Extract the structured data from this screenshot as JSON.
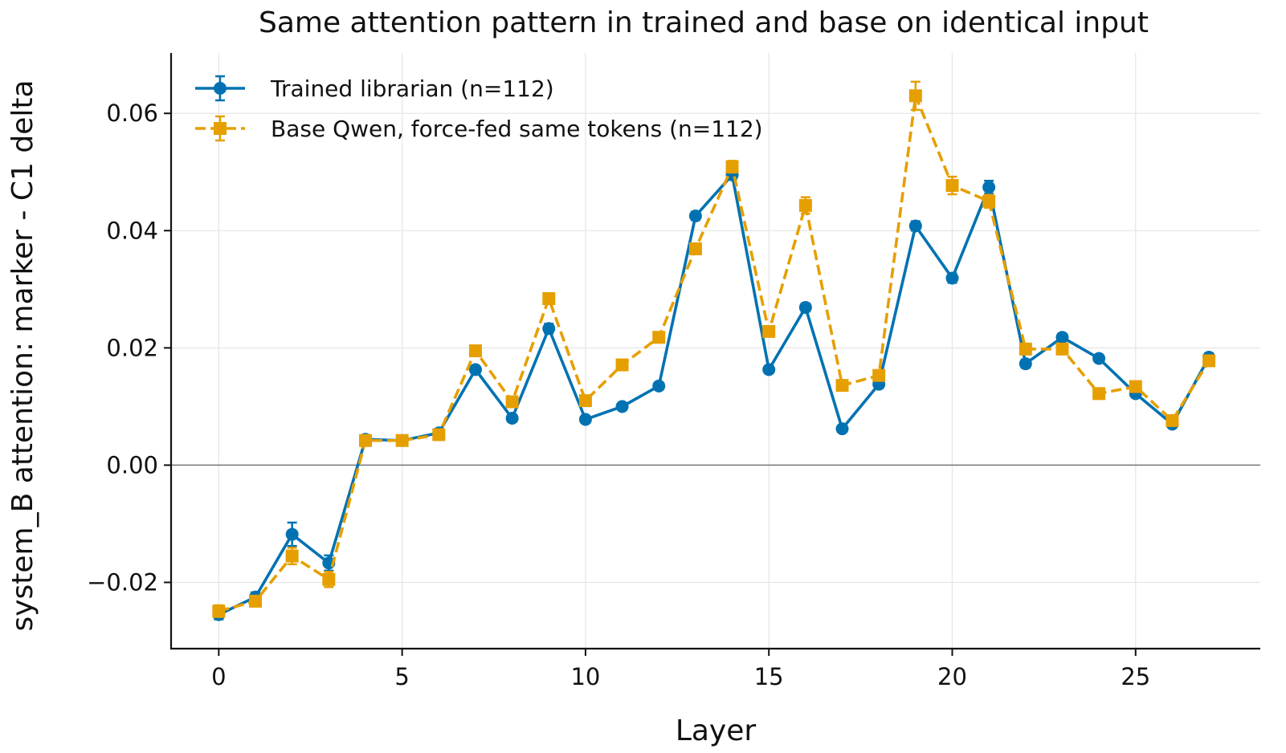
{
  "chart_data": {
    "type": "line",
    "title": "Same attention pattern in trained and base on identical input",
    "xlabel": "Layer",
    "ylabel": "system_B attention: marker - C1 delta",
    "xlim": [
      -1.3,
      28.4
    ],
    "ylim": [
      -0.0313,
      0.0703
    ],
    "xticks": [
      0,
      5,
      10,
      15,
      20,
      25
    ],
    "xtick_labels": [
      "0",
      "5",
      "10",
      "15",
      "20",
      "25"
    ],
    "yticks": [
      -0.02,
      0.0,
      0.02,
      0.04,
      0.06
    ],
    "ytick_labels": [
      "−0.02",
      "0.00",
      "0.02",
      "0.04",
      "0.06"
    ],
    "grid": true,
    "zero_line": true,
    "legend_position": "upper-left",
    "x": [
      0,
      1,
      2,
      3,
      4,
      5,
      6,
      7,
      8,
      9,
      10,
      11,
      12,
      13,
      14,
      15,
      16,
      17,
      18,
      19,
      20,
      21,
      22,
      23,
      24,
      25,
      26,
      27
    ],
    "series": [
      {
        "name": "Trained librarian (n=112)",
        "color": "#0072b2",
        "marker": "circle",
        "linestyle": "solid",
        "values": [
          -0.0255,
          -0.0225,
          -0.0118,
          -0.0167,
          0.0044,
          0.0042,
          0.0055,
          0.0163,
          0.008,
          0.0233,
          0.0078,
          0.01,
          0.0135,
          0.0425,
          0.0495,
          0.0163,
          0.0269,
          0.0062,
          0.0138,
          0.0408,
          0.0319,
          0.0474,
          0.0173,
          0.0218,
          0.0182,
          0.0122,
          0.007,
          0.0184
        ],
        "errors": [
          0.0008,
          0.0008,
          0.002,
          0.0013,
          0.0005,
          0.0004,
          0.0004,
          0.0006,
          0.0006,
          0.0008,
          0.0005,
          0.0006,
          0.0005,
          0.0007,
          0.0008,
          0.0006,
          0.0007,
          0.0005,
          0.0006,
          0.0008,
          0.0008,
          0.0011,
          0.0007,
          0.0006,
          0.0006,
          0.0005,
          0.0004,
          0.0007
        ]
      },
      {
        "name": "Base Qwen, force-fed same tokens (n=112)",
        "color": "#e69f00",
        "marker": "square",
        "linestyle": "dashed",
        "values": [
          -0.0249,
          -0.0232,
          -0.0155,
          -0.0195,
          0.0042,
          0.0042,
          0.0052,
          0.0195,
          0.0108,
          0.0284,
          0.011,
          0.0171,
          0.0218,
          0.0369,
          0.0509,
          0.0228,
          0.0443,
          0.0136,
          0.0153,
          0.063,
          0.0477,
          0.045,
          0.0198,
          0.0198,
          0.0122,
          0.0134,
          0.0076,
          0.0178
        ],
        "errors": [
          0.001,
          0.0009,
          0.0014,
          0.0013,
          0.0005,
          0.0004,
          0.0005,
          0.0008,
          0.0006,
          0.0009,
          0.0005,
          0.0006,
          0.0006,
          0.0009,
          0.001,
          0.0007,
          0.0014,
          0.0007,
          0.0007,
          0.0024,
          0.0015,
          0.0011,
          0.0007,
          0.0007,
          0.0006,
          0.0006,
          0.0005,
          0.0007
        ]
      }
    ]
  }
}
